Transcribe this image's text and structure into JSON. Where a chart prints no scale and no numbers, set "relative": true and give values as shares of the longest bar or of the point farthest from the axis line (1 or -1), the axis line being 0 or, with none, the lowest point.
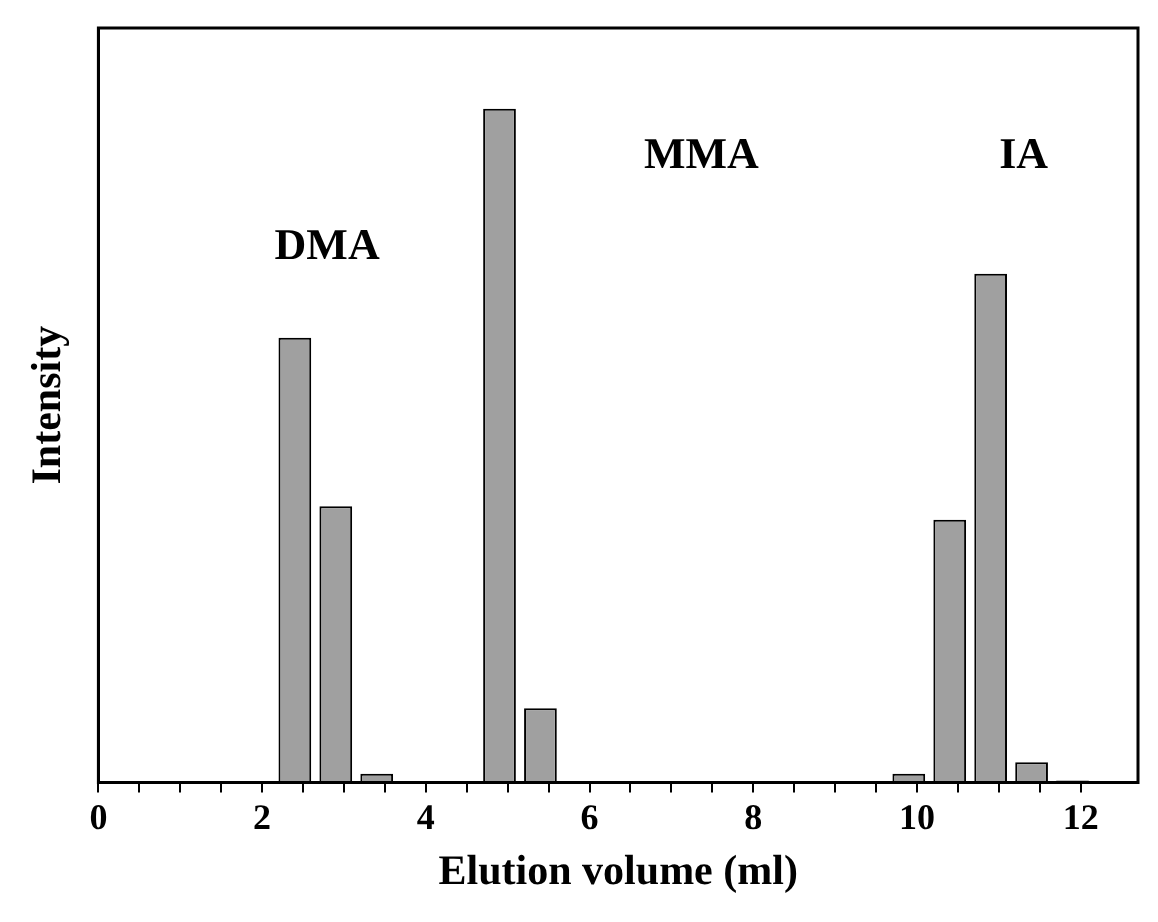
{
  "chart_data": {
    "type": "bar",
    "relative": true,
    "xlabel": "Elution volume (ml)",
    "ylabel": "Intensity",
    "x": [
      2.4,
      2.9,
      3.4,
      4.9,
      5.4,
      9.9,
      10.4,
      10.9,
      11.4,
      11.9
    ],
    "values": [
      0.66,
      0.41,
      0.013,
      1,
      0.11,
      0.013,
      0.39,
      0.755,
      0.03,
      0.003
    ],
    "color": "#a0a0a0",
    "xlim": [
      0,
      12.7
    ],
    "xticks": [
      0,
      {
        "value": 0.5,
        "label": null
      },
      2,
      {
        "value": 1,
        "label": null
      },
      {
        "value": 1.5,
        "label": null
      },
      {
        "value": 2.5,
        "label": null
      },
      {
        "value": 3,
        "label": null
      },
      {
        "value": 3.5,
        "label": null
      },
      4,
      {
        "value": 4.5,
        "label": null
      },
      {
        "value": 5,
        "label": null
      },
      {
        "value": 5.5,
        "label": null
      },
      6,
      {
        "value": 6.5,
        "label": null
      },
      {
        "value": 7,
        "label": null
      },
      {
        "value": 7.5,
        "label": null
      },
      8,
      {
        "value": 8.5,
        "label": null
      },
      {
        "value": 9,
        "label": null
      },
      {
        "value": 9.5,
        "label": null
      },
      10,
      {
        "value": 10.5,
        "label": null
      },
      {
        "value": 11,
        "label": null
      },
      {
        "value": 11.5,
        "label": null
      },
      12
    ],
    "annotations": [
      "DMA",
      "MMA",
      "IA"
    ],
    "grid": false,
    "legend": false
  }
}
